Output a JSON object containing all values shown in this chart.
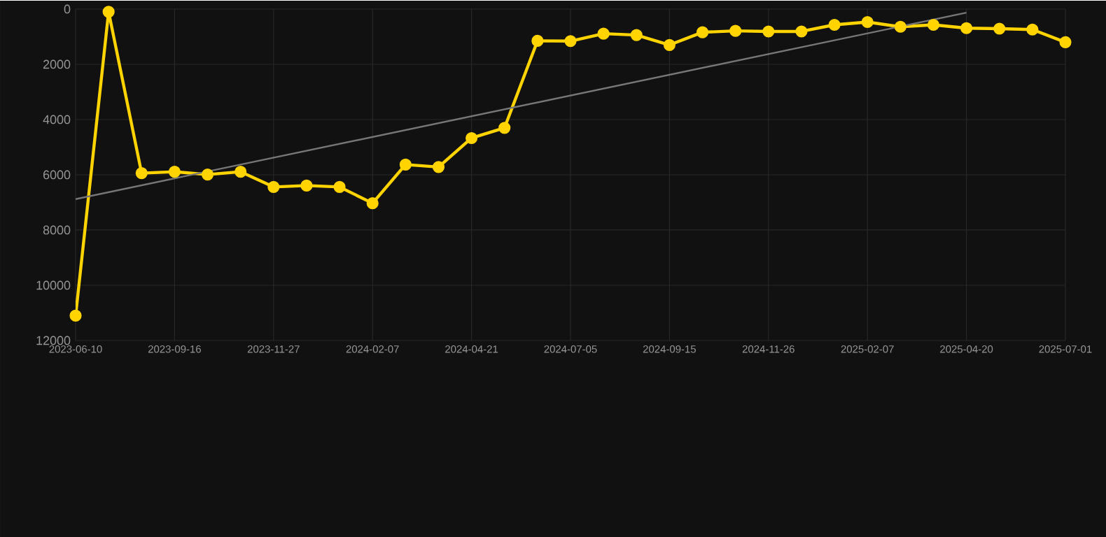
{
  "chart_data": {
    "type": "line",
    "categories": [
      "2023-06-10",
      null,
      null,
      "2023-09-16",
      null,
      null,
      "2023-11-27",
      null,
      null,
      "2024-02-07",
      null,
      null,
      "2024-04-21",
      null,
      null,
      "2024-07-05",
      null,
      null,
      "2024-09-15",
      null,
      null,
      "2024-11-26",
      null,
      null,
      "2025-02-07",
      null,
      null,
      "2025-04-20",
      null,
      null,
      "2025-07-01"
    ],
    "series": [
      {
        "color": "#ffd400",
        "values": [
          11100,
          100,
          5940,
          5890,
          5990,
          5890,
          6440,
          6390,
          6440,
          7030,
          5630,
          5720,
          4670,
          4300,
          1150,
          1160,
          890,
          940,
          1300,
          840,
          790,
          810,
          810,
          570,
          470,
          640,
          570,
          690,
          710,
          740,
          1200
        ]
      },
      {
        "type": "line",
        "color": "#777777",
        "marker": "none",
        "values": [
          6880,
          null,
          null,
          null,
          null,
          null,
          null,
          null,
          null,
          null,
          null,
          null,
          null,
          null,
          null,
          null,
          null,
          null,
          null,
          null,
          null,
          null,
          null,
          null,
          null,
          null,
          null,
          130,
          null,
          null,
          null
        ]
      }
    ],
    "ylim": [
      12000,
      0
    ],
    "yticks": [
      0,
      2000,
      4000,
      6000,
      8000,
      10000,
      12000
    ],
    "grid": true,
    "marker": "circle",
    "line_style": "solid"
  }
}
